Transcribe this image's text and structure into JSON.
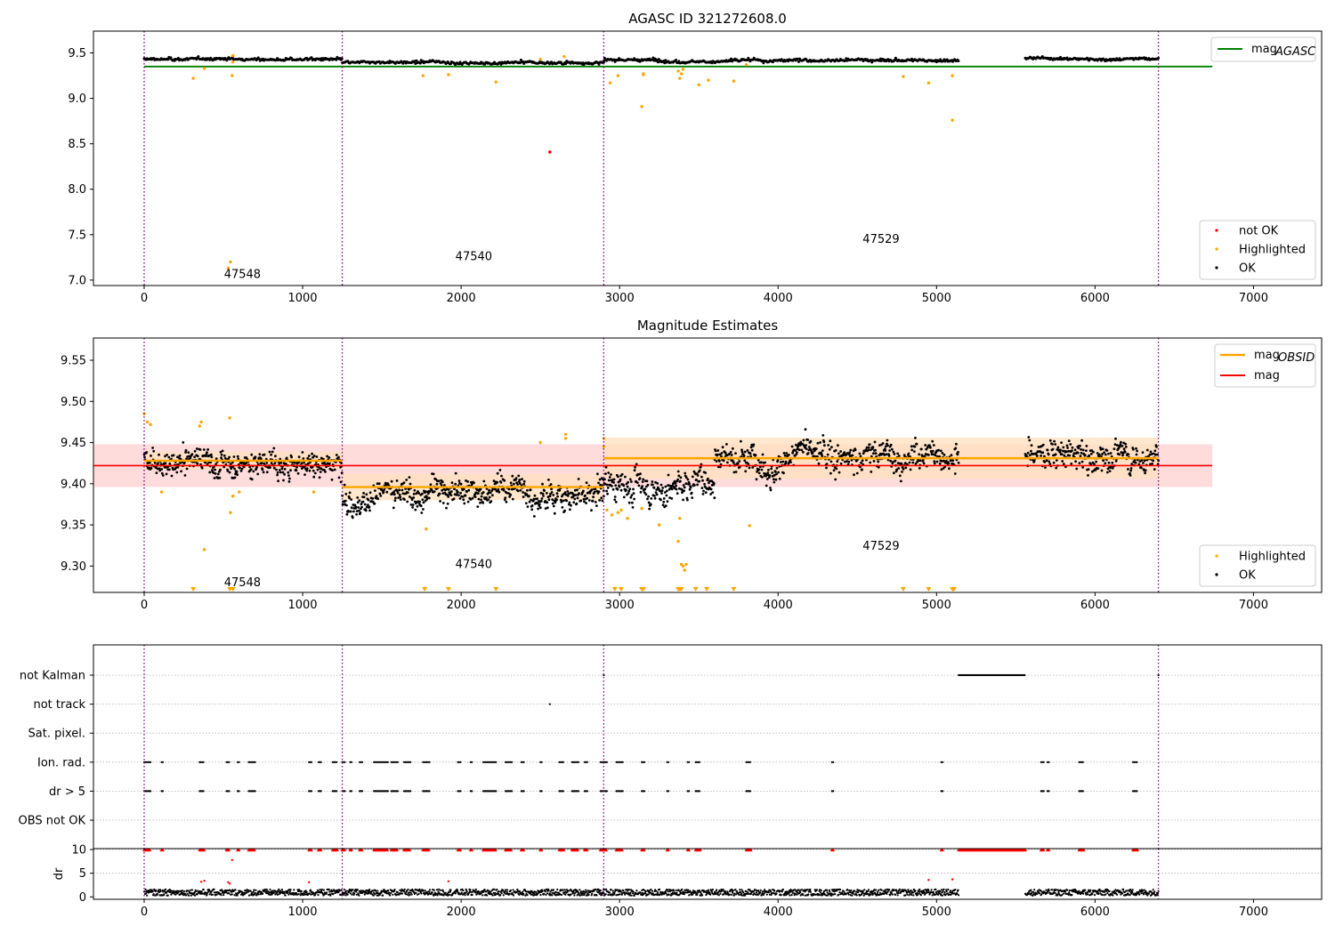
{
  "chart_data": [
    {
      "type": "scatter",
      "title": "AGASC ID 321272608.0",
      "xlim": [
        -320,
        7430
      ],
      "ylim": [
        6.94,
        9.74
      ],
      "xticks": [
        "0",
        "1000",
        "2000",
        "3000",
        "4000",
        "5000",
        "6000",
        "7000"
      ],
      "yticks": [
        "7.0",
        "7.5",
        "8.0",
        "8.5",
        "9.0",
        "9.5"
      ],
      "vlines": [
        0,
        1250,
        2900,
        6400
      ],
      "obsids": [
        {
          "label": "47548",
          "x": 620,
          "y": 7.06
        },
        {
          "label": "47540",
          "x": 2080,
          "y": 7.26
        },
        {
          "label": "47529",
          "x": 4650,
          "y": 7.45
        }
      ],
      "hline": {
        "name": "mag_AGASC",
        "y": 9.35,
        "x": [
          0,
          6740
        ],
        "color": "#008000"
      },
      "segments": [
        {
          "x": [
            0,
            1250
          ],
          "mean": 9.43,
          "spread": 0.012
        },
        {
          "x": [
            1250,
            2900
          ],
          "mean": 9.39,
          "spread": 0.012
        },
        {
          "x": [
            2900,
            5140
          ],
          "mean": 9.42,
          "spread": 0.014
        },
        {
          "x": [
            5560,
            6400
          ],
          "mean": 9.44,
          "spread": 0.012
        }
      ],
      "highlighted": [
        [
          310,
          9.22
        ],
        [
          380,
          9.33
        ],
        [
          530,
          7.13
        ],
        [
          545,
          7.2
        ],
        [
          555,
          9.25
        ],
        [
          560,
          9.4
        ],
        [
          560,
          9.47
        ],
        [
          1760,
          9.25
        ],
        [
          1920,
          9.26
        ],
        [
          2220,
          9.18
        ],
        [
          2500,
          9.43
        ],
        [
          2650,
          9.46
        ],
        [
          2940,
          9.17
        ],
        [
          2990,
          9.25
        ],
        [
          3140,
          8.91
        ],
        [
          3150,
          9.26
        ],
        [
          3150,
          9.27
        ],
        [
          3370,
          9.3
        ],
        [
          3380,
          9.22
        ],
        [
          3390,
          9.27
        ],
        [
          3400,
          9.32
        ],
        [
          3500,
          9.15
        ],
        [
          3560,
          9.2
        ],
        [
          3720,
          9.19
        ],
        [
          3800,
          9.37
        ],
        [
          4790,
          9.24
        ],
        [
          4950,
          9.17
        ],
        [
          5100,
          8.76
        ],
        [
          5100,
          9.25
        ]
      ],
      "not_ok": [
        [
          2560,
          8.41
        ]
      ],
      "legends": {
        "line": [
          "mag",
          "AGASC"
        ],
        "points": [
          "not OK",
          "Highlighted",
          "OK"
        ]
      }
    },
    {
      "type": "scatter",
      "title": "Magnitude Estimates",
      "xlim": [
        -320,
        7430
      ],
      "ylim": [
        9.268,
        9.577
      ],
      "xticks": [
        "0",
        "1000",
        "2000",
        "3000",
        "4000",
        "5000",
        "6000",
        "7000"
      ],
      "yticks": [
        "9.30",
        "9.35",
        "9.40",
        "9.45",
        "9.50",
        "9.55"
      ],
      "vlines": [
        0,
        1250,
        2900,
        6400
      ],
      "obsids": [
        {
          "label": "47548",
          "x": 620,
          "y": 9.28
        },
        {
          "label": "47540",
          "x": 2080,
          "y": 9.302
        },
        {
          "label": "47529",
          "x": 4650,
          "y": 9.324
        }
      ],
      "mag_line": {
        "name": "mag",
        "y": 9.422,
        "band": [
          9.396,
          9.448
        ],
        "x": [
          -320,
          6740
        ],
        "color": "#ff0000"
      },
      "obsid_lines": [
        {
          "x": [
            0,
            1250
          ],
          "y": 9.428,
          "band": [
            9.417,
            9.439
          ]
        },
        {
          "x": [
            1250,
            2900
          ],
          "y": 9.396,
          "band": [
            9.38,
            9.412
          ]
        },
        {
          "x": [
            2900,
            6400
          ],
          "y": 9.431,
          "band": [
            9.406,
            9.456
          ]
        }
      ],
      "segments": [
        {
          "x": [
            0,
            1250
          ],
          "mean": 9.428,
          "spread": 0.012
        },
        {
          "x": [
            1250,
            2900
          ],
          "mean": 9.393,
          "spread": 0.013
        },
        {
          "x": [
            2900,
            3600
          ],
          "mean": 9.4,
          "spread": 0.014
        },
        {
          "x": [
            3600,
            5140
          ],
          "mean": 9.436,
          "spread": 0.014
        },
        {
          "x": [
            5560,
            6400
          ],
          "mean": 9.437,
          "spread": 0.013
        }
      ],
      "highlighted": [
        [
          0,
          9.485
        ],
        [
          20,
          9.475
        ],
        [
          40,
          9.472
        ],
        [
          110,
          9.39
        ],
        [
          350,
          9.47
        ],
        [
          360,
          9.475
        ],
        [
          380,
          9.32
        ],
        [
          540,
          9.48
        ],
        [
          545,
          9.365
        ],
        [
          560,
          9.385
        ],
        [
          600,
          9.39
        ],
        [
          1070,
          9.39
        ],
        [
          1780,
          9.345
        ],
        [
          2500,
          9.45
        ],
        [
          2660,
          9.46
        ],
        [
          2660,
          9.455
        ],
        [
          2900,
          9.455
        ],
        [
          2900,
          9.445
        ],
        [
          2920,
          9.368
        ],
        [
          2950,
          9.362
        ],
        [
          2990,
          9.365
        ],
        [
          3010,
          9.368
        ],
        [
          3050,
          9.358
        ],
        [
          3140,
          9.37
        ],
        [
          3250,
          9.35
        ],
        [
          3370,
          9.33
        ],
        [
          3380,
          9.358
        ],
        [
          3390,
          9.302
        ],
        [
          3400,
          9.3
        ],
        [
          3410,
          9.295
        ],
        [
          3420,
          9.302
        ],
        [
          3820,
          9.349
        ]
      ],
      "low_markers": [
        310,
        540,
        560,
        1770,
        1920,
        2220,
        2970,
        3010,
        3140,
        3150,
        3370,
        3380,
        3390,
        3480,
        3550,
        3720,
        4790,
        4950,
        5100,
        5110
      ],
      "legends": {
        "line": [
          "mag",
          "OBSID",
          "mag"
        ],
        "points": [
          "Highlighted",
          "OK"
        ]
      }
    },
    {
      "type": "scatter",
      "title": "",
      "xlim": [
        -320,
        7430
      ],
      "xticks": [
        "0",
        "1000",
        "2000",
        "3000",
        "4000",
        "5000",
        "6000",
        "7000"
      ],
      "vlines": [
        0,
        1250,
        2900,
        6400
      ],
      "categories": [
        "not Kalman",
        "not track",
        "Sat. pixel.",
        "Ion. rad.",
        "dr > 5",
        "OBS not OK"
      ],
      "flag_runs": {
        "not Kalman": [
          [
            2900,
            2905
          ],
          [
            5140,
            5560
          ],
          [
            6400,
            6405
          ]
        ],
        "not track": [
          [
            2560,
            2562
          ]
        ],
        "Sat. pixel.": [],
        "Ion. rad.": [
          [
            0,
            40
          ],
          [
            110,
            120
          ],
          [
            350,
            380
          ],
          [
            520,
            540
          ],
          [
            590,
            600
          ],
          [
            660,
            700
          ],
          [
            1040,
            1060
          ],
          [
            1100,
            1120
          ],
          [
            1190,
            1220
          ],
          [
            1250,
            1270
          ],
          [
            1300,
            1310
          ],
          [
            1360,
            1380
          ],
          [
            1450,
            1540
          ],
          [
            1560,
            1600
          ],
          [
            1640,
            1680
          ],
          [
            1760,
            1800
          ],
          [
            1980,
            2000
          ],
          [
            2060,
            2070
          ],
          [
            2140,
            2220
          ],
          [
            2280,
            2320
          ],
          [
            2380,
            2400
          ],
          [
            2500,
            2510
          ],
          [
            2620,
            2650
          ],
          [
            2700,
            2740
          ],
          [
            2780,
            2800
          ],
          [
            2880,
            2920
          ],
          [
            2980,
            3020
          ],
          [
            3140,
            3160
          ],
          [
            3300,
            3310
          ],
          [
            3430,
            3440
          ],
          [
            3480,
            3510
          ],
          [
            3800,
            3830
          ],
          [
            4340,
            4350
          ],
          [
            5030,
            5040
          ],
          [
            5660,
            5680
          ],
          [
            5700,
            5710
          ],
          [
            5900,
            5930
          ],
          [
            6240,
            6270
          ]
        ],
        "dr > 5": [
          [
            0,
            40
          ],
          [
            110,
            120
          ],
          [
            350,
            380
          ],
          [
            520,
            540
          ],
          [
            590,
            600
          ],
          [
            660,
            700
          ],
          [
            1040,
            1060
          ],
          [
            1100,
            1120
          ],
          [
            1190,
            1220
          ],
          [
            1250,
            1270
          ],
          [
            1300,
            1310
          ],
          [
            1360,
            1380
          ],
          [
            1450,
            1540
          ],
          [
            1560,
            1600
          ],
          [
            1640,
            1680
          ],
          [
            1760,
            1800
          ],
          [
            1980,
            2000
          ],
          [
            2060,
            2070
          ],
          [
            2140,
            2220
          ],
          [
            2280,
            2320
          ],
          [
            2380,
            2400
          ],
          [
            2500,
            2510
          ],
          [
            2620,
            2650
          ],
          [
            2700,
            2740
          ],
          [
            2780,
            2800
          ],
          [
            2880,
            2920
          ],
          [
            2980,
            3020
          ],
          [
            3140,
            3160
          ],
          [
            3300,
            3310
          ],
          [
            3430,
            3440
          ],
          [
            3480,
            3510
          ],
          [
            3800,
            3830
          ],
          [
            4340,
            4350
          ],
          [
            5030,
            5040
          ],
          [
            5660,
            5680
          ],
          [
            5700,
            5710
          ],
          [
            5900,
            5930
          ],
          [
            6240,
            6270
          ]
        ],
        "OBS not OK": []
      }
    },
    {
      "type": "scatter",
      "title": "",
      "ylabel": "dr",
      "xlim": [
        -320,
        7430
      ],
      "ylim": [
        -0.5,
        10.2
      ],
      "xticks": [
        "0",
        "1000",
        "2000",
        "3000",
        "4000",
        "5000",
        "6000",
        "7000"
      ],
      "yticks": [
        "0",
        "5",
        "10"
      ],
      "vlines": [
        0,
        1250,
        2900,
        6400
      ],
      "dr_range": [
        0.3,
        1.6
      ],
      "clipped_at": 10,
      "clipped_runs": [
        [
          0,
          40
        ],
        [
          110,
          120
        ],
        [
          350,
          380
        ],
        [
          520,
          540
        ],
        [
          590,
          600
        ],
        [
          660,
          700
        ],
        [
          1040,
          1060
        ],
        [
          1100,
          1120
        ],
        [
          1190,
          1220
        ],
        [
          1250,
          1270
        ],
        [
          1300,
          1310
        ],
        [
          1360,
          1380
        ],
        [
          1450,
          1540
        ],
        [
          1560,
          1600
        ],
        [
          1640,
          1680
        ],
        [
          1760,
          1800
        ],
        [
          1980,
          2000
        ],
        [
          2060,
          2070
        ],
        [
          2140,
          2220
        ],
        [
          2280,
          2320
        ],
        [
          2380,
          2400
        ],
        [
          2500,
          2510
        ],
        [
          2620,
          2650
        ],
        [
          2700,
          2740
        ],
        [
          2780,
          2800
        ],
        [
          2880,
          2920
        ],
        [
          2980,
          3020
        ],
        [
          3140,
          3160
        ],
        [
          3300,
          3310
        ],
        [
          3430,
          3440
        ],
        [
          3480,
          3510
        ],
        [
          3800,
          3830
        ],
        [
          4340,
          4350
        ],
        [
          5030,
          5040
        ],
        [
          5140,
          5560
        ],
        [
          5660,
          5680
        ],
        [
          5700,
          5710
        ],
        [
          5900,
          5930
        ],
        [
          6240,
          6270
        ]
      ],
      "red_points": [
        [
          360,
          3.2
        ],
        [
          380,
          3.4
        ],
        [
          530,
          3.1
        ],
        [
          540,
          2.8
        ],
        [
          555,
          7.8
        ],
        [
          1040,
          3.1
        ],
        [
          1920,
          3.3
        ],
        [
          4950,
          3.6
        ],
        [
          5100,
          3.7
        ]
      ]
    }
  ],
  "colors": {
    "ok": "#000000",
    "highlighted": "#ffa500",
    "not_ok": "#ff0000",
    "agasc_line": "#008000",
    "mag_line": "#ff0000",
    "mag_band": "#ffdcdc",
    "obsid_line": "#ffa500",
    "obsid_band": "#ffe1c0",
    "vline": "#800080",
    "grid": "#b0b0b0"
  }
}
